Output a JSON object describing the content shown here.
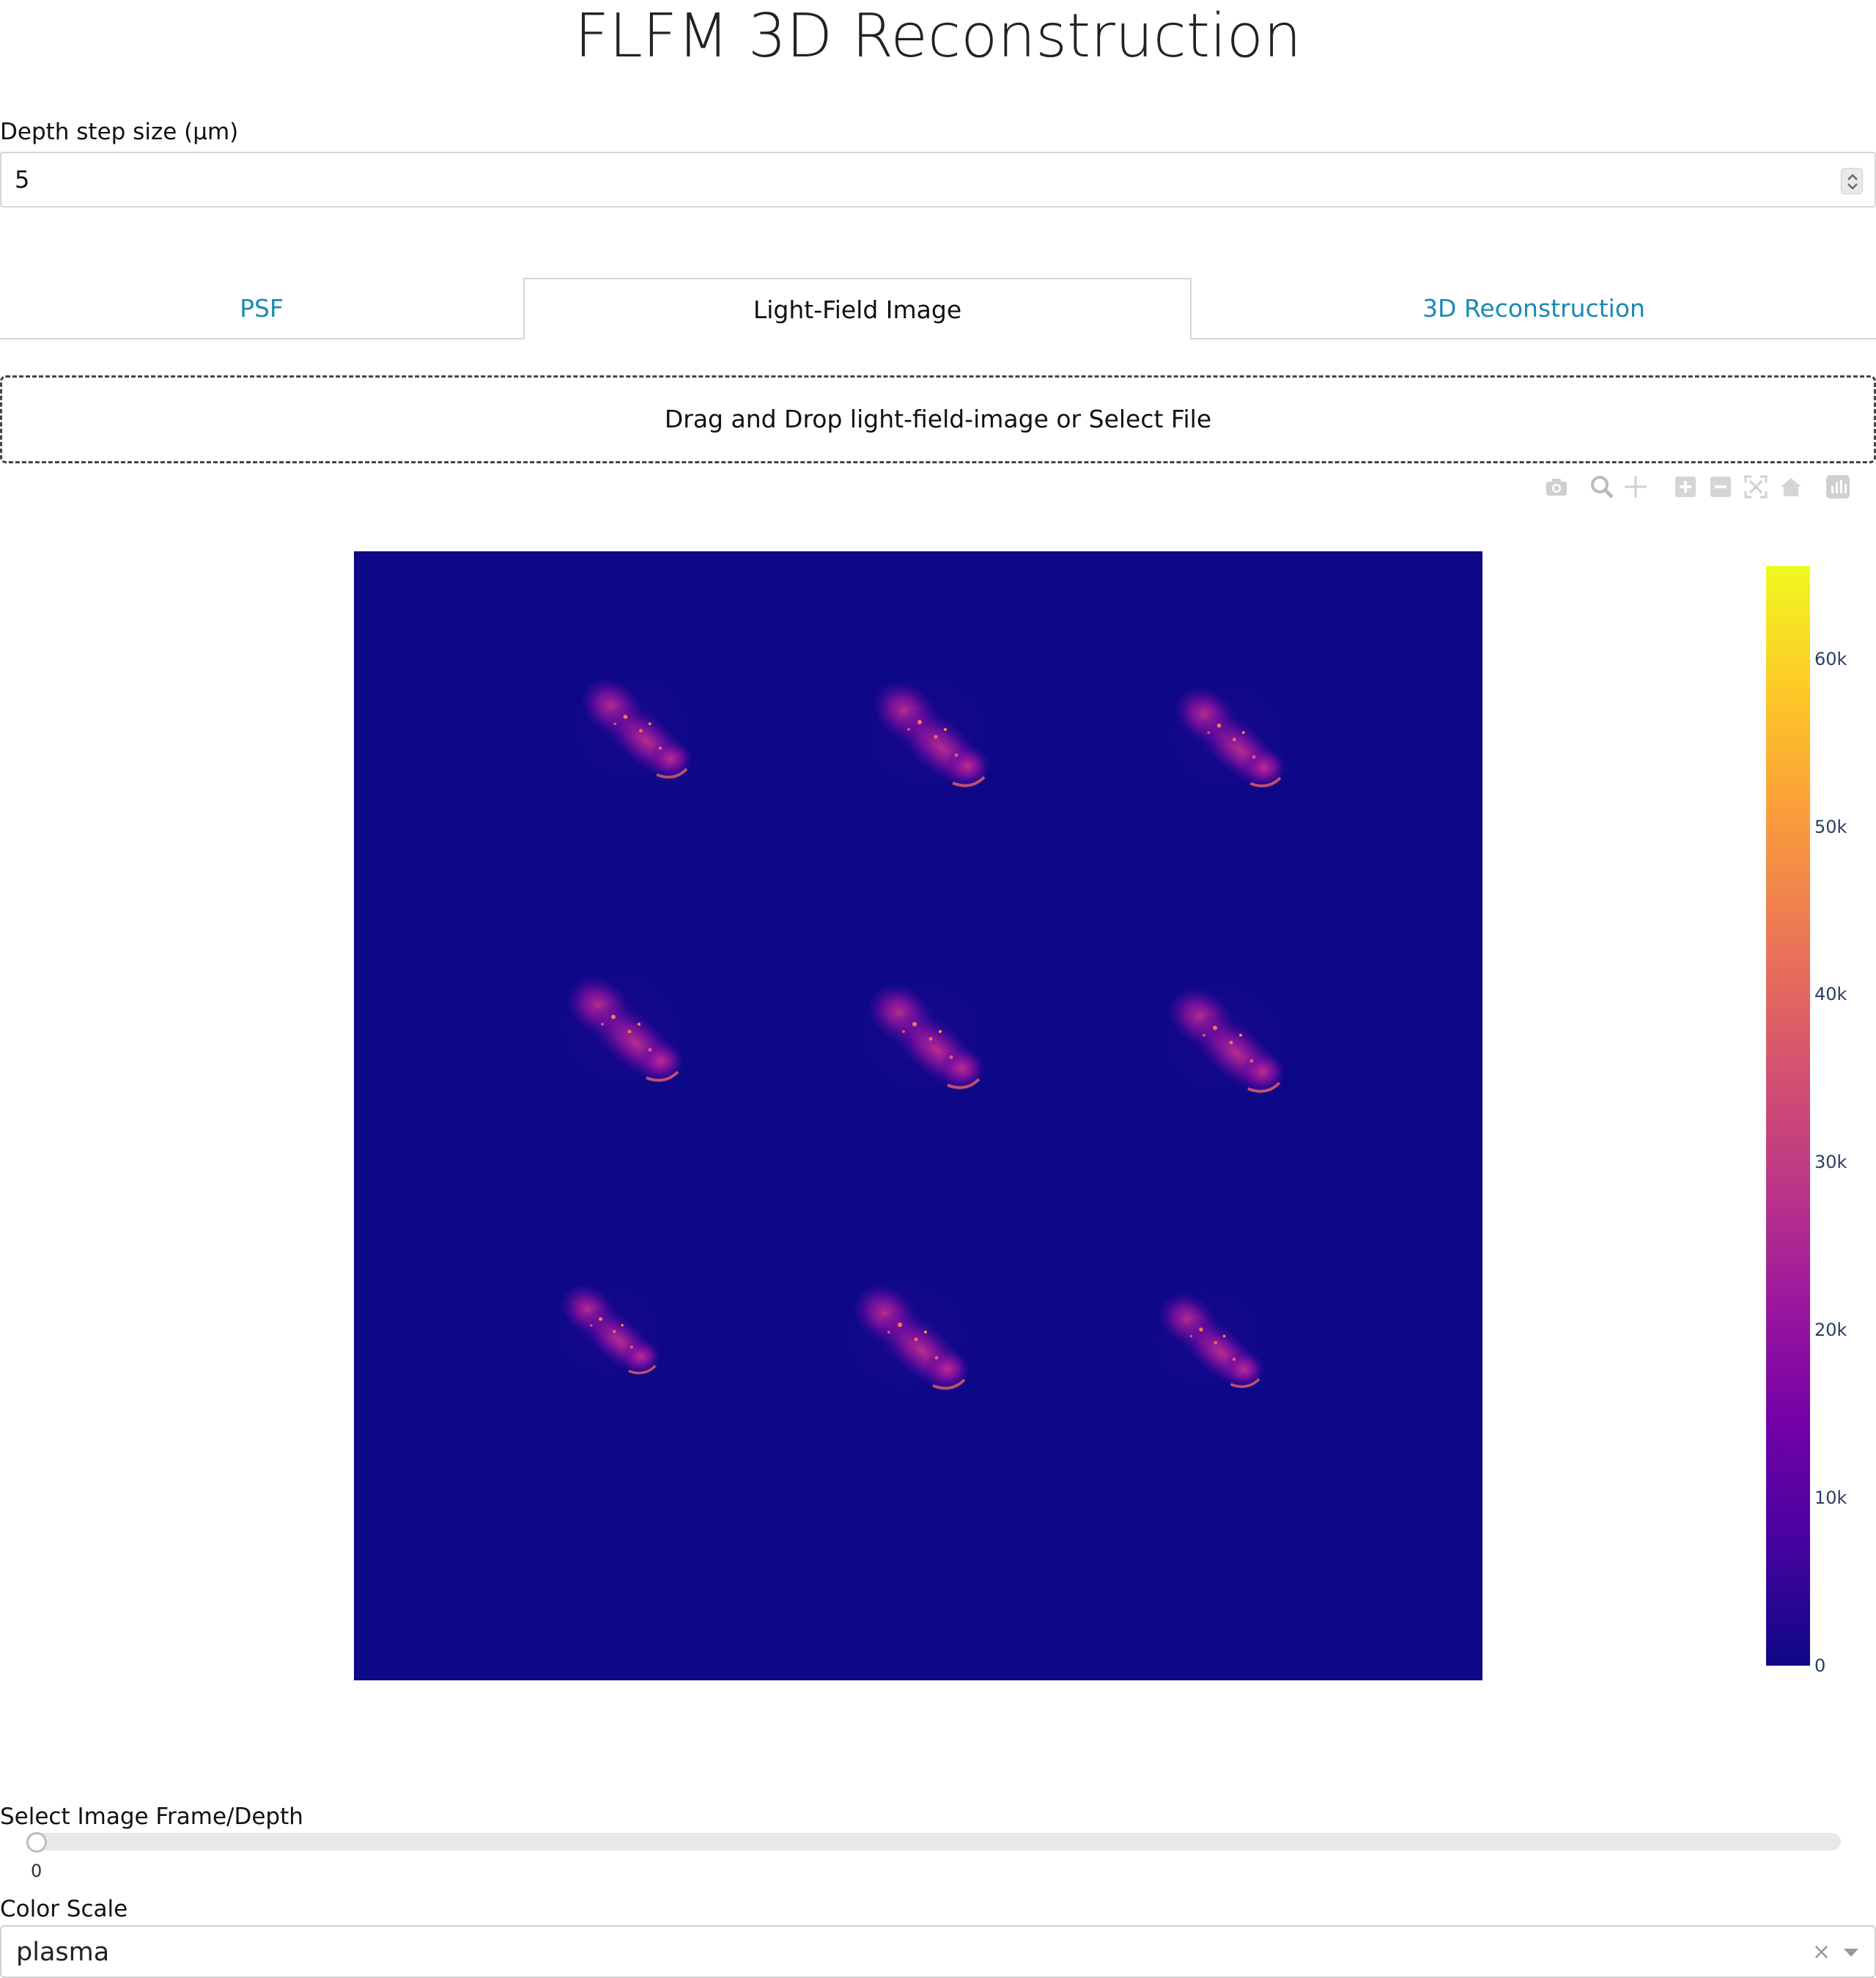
{
  "title": "FLFM 3D Reconstruction",
  "depth": {
    "label": "Depth step size (μm)",
    "value": "5"
  },
  "tabs": [
    {
      "label": "PSF",
      "selected": false
    },
    {
      "label": "Light-Field Image",
      "selected": true
    },
    {
      "label": "3D Reconstruction",
      "selected": false
    }
  ],
  "upload": {
    "text": "Drag and Drop light-field-image or Select File"
  },
  "modebar": {
    "icons": [
      "camera-icon",
      "zoom-icon",
      "pan-icon",
      "zoom-in-icon",
      "zoom-out-icon",
      "autoscale-icon",
      "reset-axes-icon",
      "plotly-logo-icon"
    ]
  },
  "chart_data": {
    "type": "heatmap",
    "colorscale": "plasma",
    "colorbar": {
      "ticks": [
        "0",
        "10k",
        "20k",
        "30k",
        "40k",
        "50k",
        "60k"
      ],
      "range": [
        0,
        65535
      ]
    },
    "content": "3×3 grid of elemental light-field sub-images of a specimen"
  },
  "slider": {
    "label": "Select Image Frame/Depth",
    "min_mark": "0",
    "value": 0
  },
  "color_scale": {
    "label": "Color Scale",
    "value": "plasma",
    "clear_glyph": "×"
  },
  "colors": {
    "tab_link": "#1a8ab4",
    "background_plot": "#0d0887"
  }
}
